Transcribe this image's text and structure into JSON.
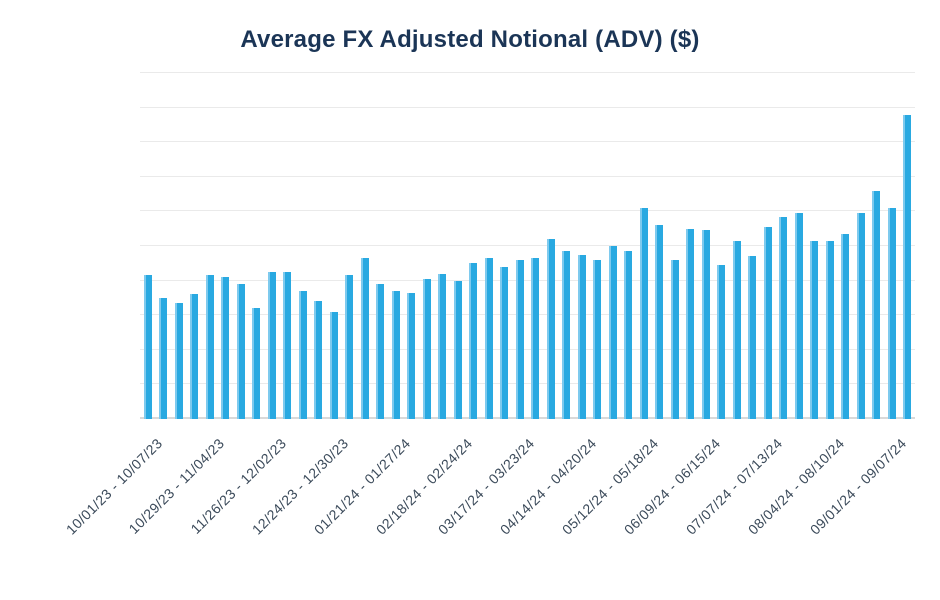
{
  "chart": {
    "title": "Average FX Adjusted Notional (ADV) ($)"
  },
  "style": {
    "background": "#ffffff",
    "title_color": "#1b3556",
    "tick_label_color": "#3b4a5a",
    "bar_color": "#29a9e1",
    "bar_highlight_color": "#7ecaee",
    "gridline_color": "#eaeaea",
    "axis_line_color": "#d9d9d9"
  },
  "chart_data": {
    "type": "bar",
    "title": "Average FX Adjusted Notional (ADV) ($)",
    "xlabel": "",
    "ylabel": "",
    "legend": "none",
    "grid": "horizontal",
    "n_bars": 50,
    "n_grid_intervals": 10,
    "ylim": [
      0,
      10
    ],
    "y_tick_labels": [],
    "y_units": "relative height in gridline intervals (no y-axis tick labels shown)",
    "values": [
      4.15,
      3.5,
      3.35,
      3.6,
      4.15,
      4.1,
      3.9,
      3.2,
      4.25,
      4.25,
      3.7,
      3.4,
      3.1,
      4.15,
      4.65,
      3.9,
      3.7,
      3.65,
      4.05,
      4.2,
      4.0,
      4.5,
      4.65,
      4.4,
      4.6,
      4.65,
      5.2,
      4.85,
      4.75,
      4.6,
      5.0,
      4.85,
      6.1,
      5.6,
      4.6,
      5.5,
      5.45,
      4.45,
      5.15,
      4.7,
      5.55,
      5.85,
      5.95,
      5.15,
      5.15,
      5.35,
      5.95,
      6.6,
      6.1,
      8.8
    ],
    "x_tick_positions": [
      0,
      4,
      8,
      12,
      16,
      20,
      24,
      28,
      32,
      36,
      40,
      44,
      48
    ],
    "x_tick_labels": [
      "10/01/23 - 10/07/23",
      "10/29/23 - 11/04/23",
      "11/26/23 - 12/02/23",
      "12/24/23 - 12/30/23",
      "01/21/24 - 01/27/24",
      "02/18/24 - 02/24/24",
      "03/17/24 - 03/23/24",
      "04/14/24 - 04/20/24",
      "05/12/24 - 05/18/24",
      "06/09/24 - 06/15/24",
      "07/07/24 - 07/13/24",
      "08/04/24 - 08/10/24",
      "09/01/24 - 09/07/24"
    ]
  }
}
